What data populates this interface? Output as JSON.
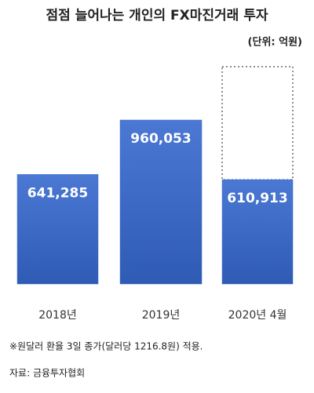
{
  "chart_data": {
    "type": "bar",
    "title": "점점 늘어나는 개인의 FX마진거래 투자",
    "subtitle": "(단위: 억원)",
    "categories": [
      "2018년",
      "2019년",
      "2020년 4월"
    ],
    "values": [
      641285,
      960053,
      610913
    ],
    "value_labels": [
      "641,285",
      "960,053",
      "610,913"
    ],
    "color": "#3d6cc8",
    "annotations": [
      "※원달러 환율 3일 종가(달러당 1216.8원) 적용.",
      "자료: 금융투자협회"
    ]
  }
}
